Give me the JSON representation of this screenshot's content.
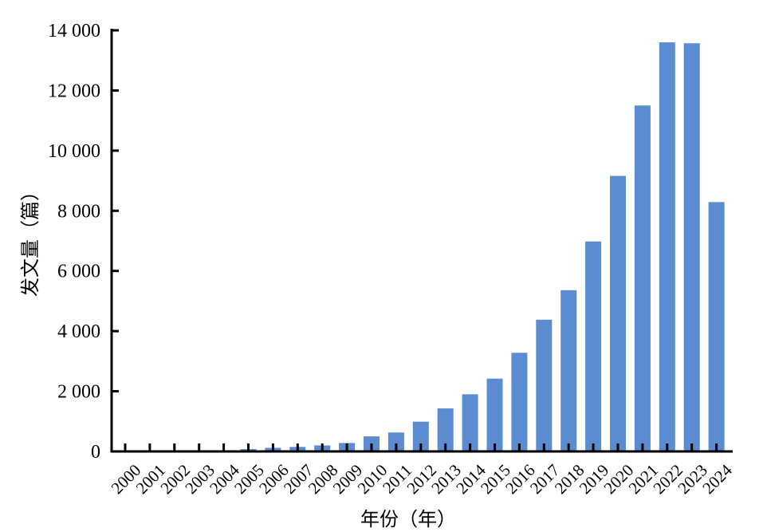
{
  "chart_data": {
    "type": "bar",
    "xlabel": "年份（年）",
    "ylabel": "发文量（篇）",
    "categories": [
      "2000",
      "2001",
      "2002",
      "2003",
      "2004",
      "2005",
      "2006",
      "2007",
      "2008",
      "2009",
      "2010",
      "2011",
      "2012",
      "2013",
      "2014",
      "2015",
      "2016",
      "2017",
      "2018",
      "2019",
      "2020",
      "2021",
      "2022",
      "2023",
      "2024"
    ],
    "values": [
      5,
      8,
      10,
      15,
      20,
      80,
      120,
      150,
      200,
      280,
      500,
      630,
      990,
      1430,
      1900,
      2420,
      3280,
      4380,
      5360,
      6980,
      9160,
      11500,
      13600,
      13570,
      8290
    ],
    "yticks": [
      0,
      2000,
      4000,
      6000,
      8000,
      10000,
      12000,
      14000
    ],
    "ytick_labels": [
      "0",
      "2 000",
      "4 000",
      "6 000",
      "8 000",
      "10 000",
      "12 000",
      "14 000"
    ],
    "ylim": [
      0,
      14000
    ],
    "bar_color": "#5b8bd0",
    "axis_color": "#000000",
    "grid": false,
    "legend": "none"
  }
}
